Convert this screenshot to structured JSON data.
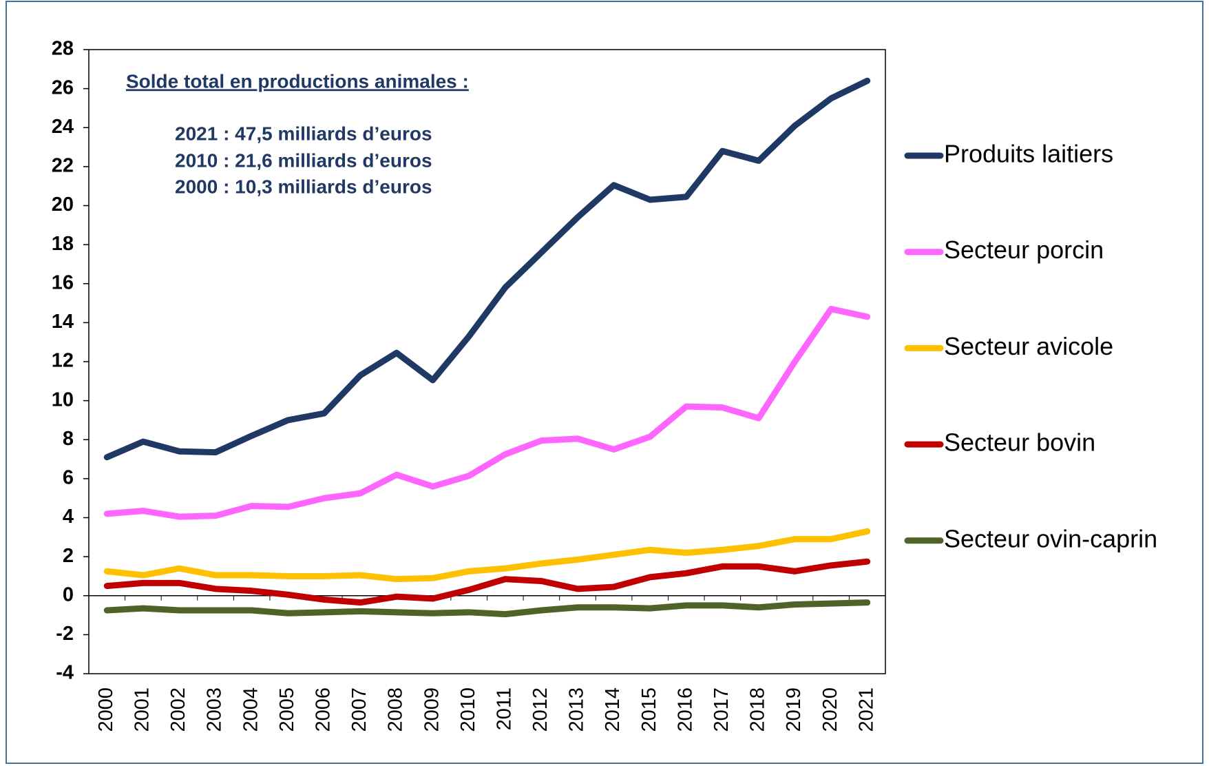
{
  "chart_data": {
    "type": "line",
    "annotation_title": "Solde total en productions animales :",
    "annotations": [
      "2021 : 47,5 milliards d’euros",
      "2010 : 21,6 milliards d’euros",
      "2000 : 10,3 milliards d’euros"
    ],
    "categories": [
      "2000",
      "2001",
      "2002",
      "2003",
      "2004",
      "2005",
      "2006",
      "2007",
      "2008",
      "2009",
      "2010",
      "2011",
      "2012",
      "2013",
      "2014",
      "2015",
      "2016",
      "2017",
      "2018",
      "2019",
      "2020",
      "2021"
    ],
    "series": [
      {
        "name": "Produits laitiers",
        "color": "#1f3864",
        "values": [
          7.1,
          7.9,
          7.4,
          7.35,
          8.2,
          9.0,
          9.35,
          11.3,
          12.45,
          11.05,
          13.3,
          15.8,
          17.6,
          19.4,
          21.05,
          20.3,
          20.45,
          22.8,
          22.3,
          24.1,
          25.5,
          26.4
        ]
      },
      {
        "name": "Secteur porcin",
        "color": "#ff66ff",
        "values": [
          4.2,
          4.35,
          4.05,
          4.1,
          4.6,
          4.55,
          5.0,
          5.25,
          6.2,
          5.6,
          6.15,
          7.25,
          7.95,
          8.05,
          7.5,
          8.15,
          9.7,
          9.65,
          9.1,
          12.0,
          14.7,
          14.3
        ]
      },
      {
        "name": "Secteur avicole",
        "color": "#ffc000",
        "values": [
          1.25,
          1.05,
          1.4,
          1.05,
          1.05,
          1.0,
          1.0,
          1.05,
          0.85,
          0.9,
          1.25,
          1.4,
          1.65,
          1.85,
          2.1,
          2.35,
          2.2,
          2.35,
          2.55,
          2.9,
          2.9,
          3.3
        ]
      },
      {
        "name": "Secteur bovin",
        "color": "#c00000",
        "values": [
          0.5,
          0.65,
          0.65,
          0.35,
          0.25,
          0.05,
          -0.2,
          -0.35,
          -0.05,
          -0.15,
          0.3,
          0.85,
          0.75,
          0.35,
          0.45,
          0.95,
          1.15,
          1.5,
          1.5,
          1.25,
          1.55,
          1.75
        ]
      },
      {
        "name": "Secteur ovin-caprin",
        "color": "#4f6228",
        "values": [
          -0.75,
          -0.65,
          -0.75,
          -0.75,
          -0.75,
          -0.9,
          -0.85,
          -0.8,
          -0.85,
          -0.9,
          -0.85,
          -0.95,
          -0.75,
          -0.6,
          -0.6,
          -0.65,
          -0.5,
          -0.5,
          -0.6,
          -0.45,
          -0.4,
          -0.35
        ]
      }
    ],
    "ylim": [
      -4,
      28
    ],
    "yticks": [
      -4,
      -2,
      0,
      2,
      4,
      6,
      8,
      10,
      12,
      14,
      16,
      18,
      20,
      22,
      24,
      26,
      28
    ],
    "grid": false,
    "legend": "right"
  }
}
